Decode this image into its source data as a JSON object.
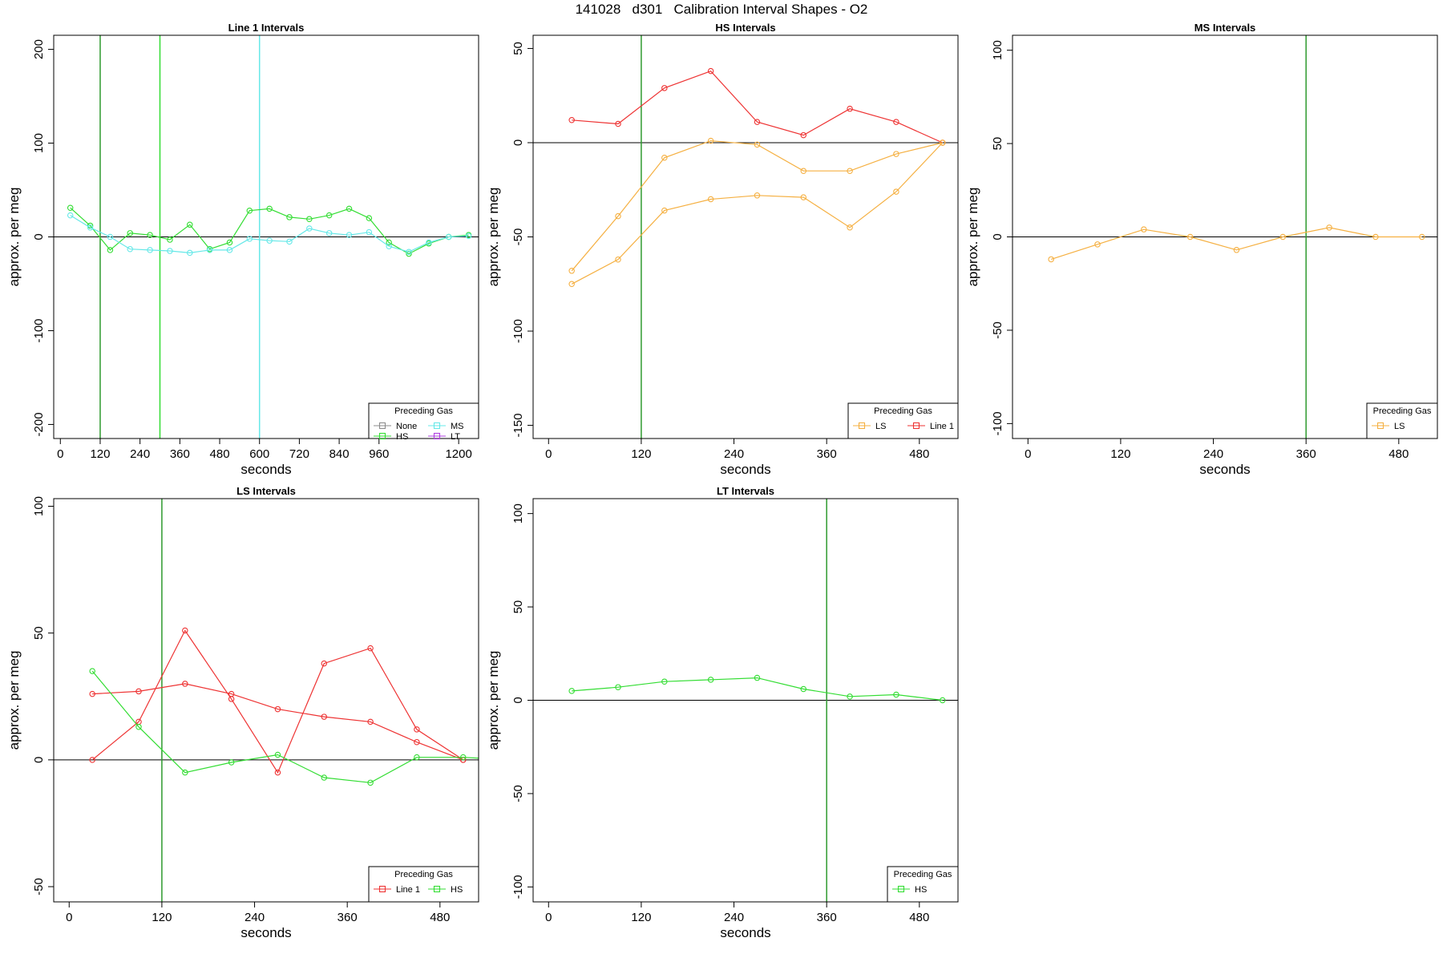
{
  "page": {
    "title": "141028   d301   Calibration Interval Shapes - O2"
  },
  "colors": {
    "None": "#8c8c8c",
    "HS": "#33dd33",
    "MS": "#66e8e8",
    "LT": "#b040e0",
    "LS": "#f5b042",
    "Line 1": "#ee3333",
    "axis": "#000000",
    "vline_dark": "#2e9a2e"
  },
  "chart_data": [
    {
      "id": "line1",
      "type": "line",
      "title": "Line 1 Intervals",
      "xlabel": "seconds",
      "ylabel": "approx. per meg",
      "xlim": [
        -20,
        1260
      ],
      "ylim": [
        -215,
        215
      ],
      "xticks": [
        0,
        120,
        240,
        360,
        480,
        600,
        720,
        840,
        960,
        1200
      ],
      "yticks": [
        -200,
        -100,
        0,
        100,
        200
      ],
      "vlines": [
        {
          "x": 120,
          "color": "#2e9a2e"
        },
        {
          "x": 300,
          "color": "#33dd33"
        },
        {
          "x": 600,
          "color": "#66e8e8"
        }
      ],
      "legend": {
        "title": "Preceding Gas",
        "placement": "bottom-right",
        "columns": 2,
        "entries": [
          "None",
          "MS",
          "HS",
          "LT"
        ]
      },
      "series": [
        {
          "name": "HS",
          "x": [
            30,
            90,
            150,
            210,
            270,
            330,
            390,
            450,
            510,
            570,
            630,
            690,
            750,
            810,
            870,
            930,
            990,
            1050,
            1110,
            1170,
            1230
          ],
          "y": [
            31,
            12,
            -14,
            4,
            2,
            -3,
            13,
            -13,
            -6,
            28,
            30,
            21,
            19,
            23,
            30,
            20,
            -6,
            -18,
            -7,
            0,
            2
          ]
        },
        {
          "name": "MS",
          "x": [
            30,
            90,
            150,
            210,
            270,
            330,
            390,
            450,
            510,
            570,
            630,
            690,
            750,
            810,
            870,
            930,
            990,
            1050,
            1110,
            1170,
            1230
          ],
          "y": [
            23,
            10,
            0,
            -13,
            -14,
            -15,
            -17,
            -14,
            -14,
            -2,
            -4,
            -5,
            9,
            4,
            2,
            5,
            -10,
            -16,
            -6,
            0,
            1
          ]
        }
      ]
    },
    {
      "id": "hs",
      "type": "line",
      "title": "HS Intervals",
      "xlabel": "seconds",
      "ylabel": "approx. per meg",
      "xlim": [
        -20,
        530
      ],
      "ylim": [
        -157,
        57
      ],
      "xticks": [
        0,
        120,
        240,
        360,
        480
      ],
      "yticks": [
        -150,
        -100,
        -50,
        0,
        50
      ],
      "vlines": [
        {
          "x": 120,
          "color": "#2e9a2e"
        }
      ],
      "legend": {
        "title": "Preceding Gas",
        "placement": "bottom-right",
        "columns": 2,
        "entries": [
          "LS",
          "Line 1"
        ]
      },
      "series": [
        {
          "name": "Line 1",
          "x": [
            30,
            90,
            150,
            210,
            270,
            330,
            390,
            450,
            510
          ],
          "y": [
            12,
            10,
            29,
            38,
            11,
            4,
            18,
            11,
            0
          ]
        },
        {
          "name": "LS",
          "x": [
            30,
            90,
            150,
            210,
            270,
            330,
            390,
            450,
            510
          ],
          "y": [
            -68,
            -39,
            -8,
            1,
            -1,
            -15,
            -15,
            -6,
            0
          ]
        },
        {
          "name": "LS",
          "x": [
            30,
            90,
            150,
            210,
            270,
            330,
            390,
            450,
            510
          ],
          "y": [
            -75,
            -62,
            -36,
            -30,
            -28,
            -29,
            -45,
            -26,
            0
          ]
        }
      ]
    },
    {
      "id": "ms",
      "type": "line",
      "title": "MS Intervals",
      "xlabel": "seconds",
      "ylabel": "approx. per meg",
      "xlim": [
        -20,
        530
      ],
      "ylim": [
        -108,
        108
      ],
      "xticks": [
        0,
        120,
        240,
        360,
        480
      ],
      "yticks": [
        -100,
        -50,
        0,
        50,
        100
      ],
      "vlines": [
        {
          "x": 360,
          "color": "#2e9a2e"
        }
      ],
      "legend": {
        "title": "Preceding Gas",
        "placement": "bottom-right",
        "columns": 1,
        "entries": [
          "LS"
        ]
      },
      "series": [
        {
          "name": "LS",
          "x": [
            30,
            90,
            150,
            210,
            270,
            330,
            390,
            450,
            510
          ],
          "y": [
            -12,
            -4,
            4,
            0,
            -7,
            0,
            5,
            0,
            0
          ]
        }
      ]
    },
    {
      "id": "ls",
      "type": "line",
      "title": "LS Intervals",
      "xlabel": "seconds",
      "ylabel": "approx. per meg",
      "xlim": [
        -20,
        530
      ],
      "ylim": [
        -56,
        103
      ],
      "xticks": [
        0,
        120,
        240,
        360,
        480
      ],
      "yticks": [
        -50,
        0,
        50,
        100
      ],
      "vlines": [
        {
          "x": 120,
          "color": "#2e9a2e"
        }
      ],
      "legend": {
        "title": "Preceding Gas",
        "placement": "bottom-right",
        "columns": 2,
        "entries": [
          "Line 1",
          "HS"
        ]
      },
      "series": [
        {
          "name": "Line 1",
          "x": [
            30,
            90,
            150,
            210,
            270,
            330,
            390,
            450,
            510
          ],
          "y": [
            26,
            27,
            30,
            26,
            20,
            17,
            15,
            7,
            0
          ]
        },
        {
          "name": "Line 1",
          "x": [
            30,
            90,
            150,
            210,
            270,
            330,
            390,
            450,
            510
          ],
          "y": [
            0,
            15,
            51,
            24,
            -5,
            38,
            44,
            12,
            0
          ]
        },
        {
          "name": "HS",
          "x": [
            30,
            90,
            150,
            210,
            270,
            330,
            390,
            450,
            510,
            570
          ],
          "y": [
            35,
            13,
            -5,
            -1,
            2,
            -7,
            -9,
            1,
            1,
            0
          ]
        }
      ]
    },
    {
      "id": "lt",
      "type": "line",
      "title": "LT Intervals",
      "xlabel": "seconds",
      "ylabel": "approx. per meg",
      "xlim": [
        -20,
        530
      ],
      "ylim": [
        -108,
        108
      ],
      "xticks": [
        0,
        120,
        240,
        360,
        480
      ],
      "yticks": [
        -100,
        -50,
        0,
        50,
        100
      ],
      "vlines": [
        {
          "x": 360,
          "color": "#2e9a2e"
        }
      ],
      "legend": {
        "title": "Preceding Gas",
        "placement": "bottom-right",
        "columns": 1,
        "entries": [
          "HS"
        ]
      },
      "series": [
        {
          "name": "HS",
          "x": [
            30,
            90,
            150,
            210,
            270,
            330,
            390,
            450,
            510
          ],
          "y": [
            5,
            7,
            10,
            11,
            12,
            6,
            2,
            3,
            0
          ]
        }
      ]
    }
  ]
}
